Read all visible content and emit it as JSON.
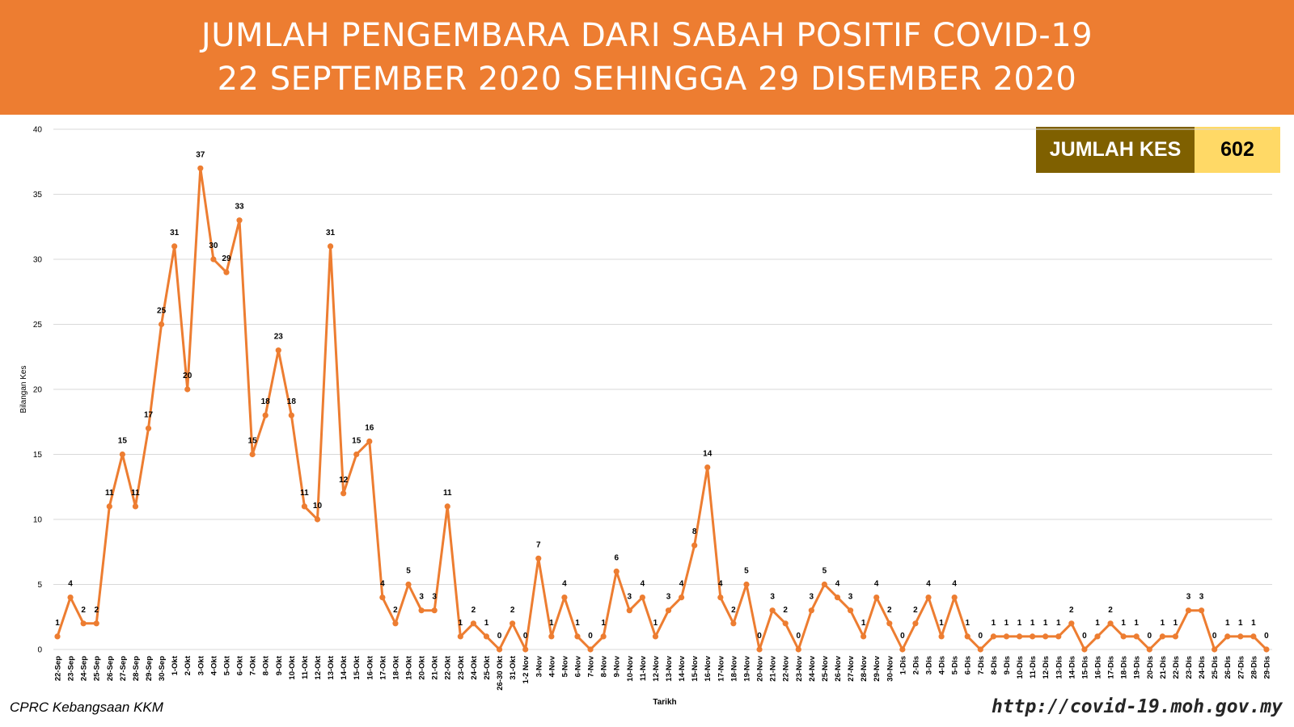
{
  "header": {
    "title_line1": "JUMLAH PENGEMBARA DARI SABAH POSITIF COVID-19",
    "title_line2": "22 SEPTEMBER 2020 SEHINGGA 29 DISEMBER 2020"
  },
  "summary": {
    "label": "JUMLAH KES",
    "value": "602"
  },
  "footer": {
    "left": "CPRC Kebangsaan KKM",
    "right": "http://covid-19.moh.gov.my"
  },
  "colors": {
    "banner": "#ED7D31",
    "line": "#ED7D31",
    "summary_label_bg": "#7F6000",
    "summary_value_bg": "#FFD966",
    "gridline": "#D9D9D9"
  },
  "chart_data": {
    "type": "line",
    "xlabel": "Tarikh",
    "ylabel": "Bilangan Kes",
    "ylim": [
      0,
      40
    ],
    "yticks": [
      0,
      5,
      10,
      15,
      20,
      25,
      30,
      35,
      40
    ],
    "grid": "horizontal",
    "data_labels": true,
    "categories": [
      "22-Sep",
      "23-Sep",
      "24-Sep",
      "25-Sep",
      "26-Sep",
      "27-Sep",
      "28-Sep",
      "29-Sep",
      "30-Sep",
      "1-Okt",
      "2-Okt",
      "3-Okt",
      "4-Okt",
      "5-Okt",
      "6-Okt",
      "7-Okt",
      "8-Okt",
      "9-Okt",
      "10-Okt",
      "11-Okt",
      "12-Okt",
      "13-Okt",
      "14-Okt",
      "15-Okt",
      "16-Okt",
      "17-Okt",
      "18-Okt",
      "19-Okt",
      "20-Okt",
      "21-Okt",
      "22-Okt",
      "23-Okt",
      "24-Okt",
      "25-Okt",
      "26-30 Okt",
      "31-Okt",
      "1-2 Nov",
      "3-Nov",
      "4-Nov",
      "5-Nov",
      "6-Nov",
      "7-Nov",
      "8-Nov",
      "9-Nov",
      "10-Nov",
      "11-Nov",
      "12-Nov",
      "13-Nov",
      "14-Nov",
      "15-Nov",
      "16-Nov",
      "17-Nov",
      "18-Nov",
      "19-Nov",
      "20-Nov",
      "21-Nov",
      "22-Nov",
      "23-Nov",
      "24-Nov",
      "25-Nov",
      "26-Nov",
      "27-Nov",
      "28-Nov",
      "29-Nov",
      "30-Nov",
      "1-Dis",
      "2-Dis",
      "3-Dis",
      "4-Dis",
      "5-Dis",
      "6-Dis",
      "7-Dis",
      "8-Dis",
      "9-Dis",
      "10-Dis",
      "11-Dis",
      "12-Dis",
      "13-Dis",
      "14-Dis",
      "15-Dis",
      "16-Dis",
      "17-Dis",
      "18-Dis",
      "19-Dis",
      "20-Dis",
      "21-Dis",
      "22-Dis",
      "23-Dis",
      "24-Dis",
      "25-Dis",
      "26-Dis",
      "27-Dis",
      "28-Dis",
      "29-Dis"
    ],
    "values": [
      1,
      4,
      2,
      2,
      11,
      15,
      11,
      17,
      25,
      31,
      20,
      37,
      30,
      29,
      33,
      15,
      18,
      23,
      18,
      11,
      10,
      31,
      12,
      15,
      16,
      4,
      2,
      5,
      3,
      3,
      11,
      1,
      2,
      1,
      0,
      2,
      0,
      7,
      1,
      4,
      1,
      0,
      1,
      6,
      3,
      4,
      1,
      3,
      4,
      8,
      14,
      4,
      2,
      5,
      0,
      3,
      2,
      0,
      3,
      5,
      4,
      3,
      1,
      4,
      2,
      0,
      2,
      4,
      1,
      4,
      1,
      0,
      1,
      1,
      1,
      1,
      1,
      1,
      2,
      0,
      1,
      2,
      1,
      1,
      0,
      1,
      1,
      3,
      3,
      0,
      1,
      1,
      1,
      0
    ]
  }
}
